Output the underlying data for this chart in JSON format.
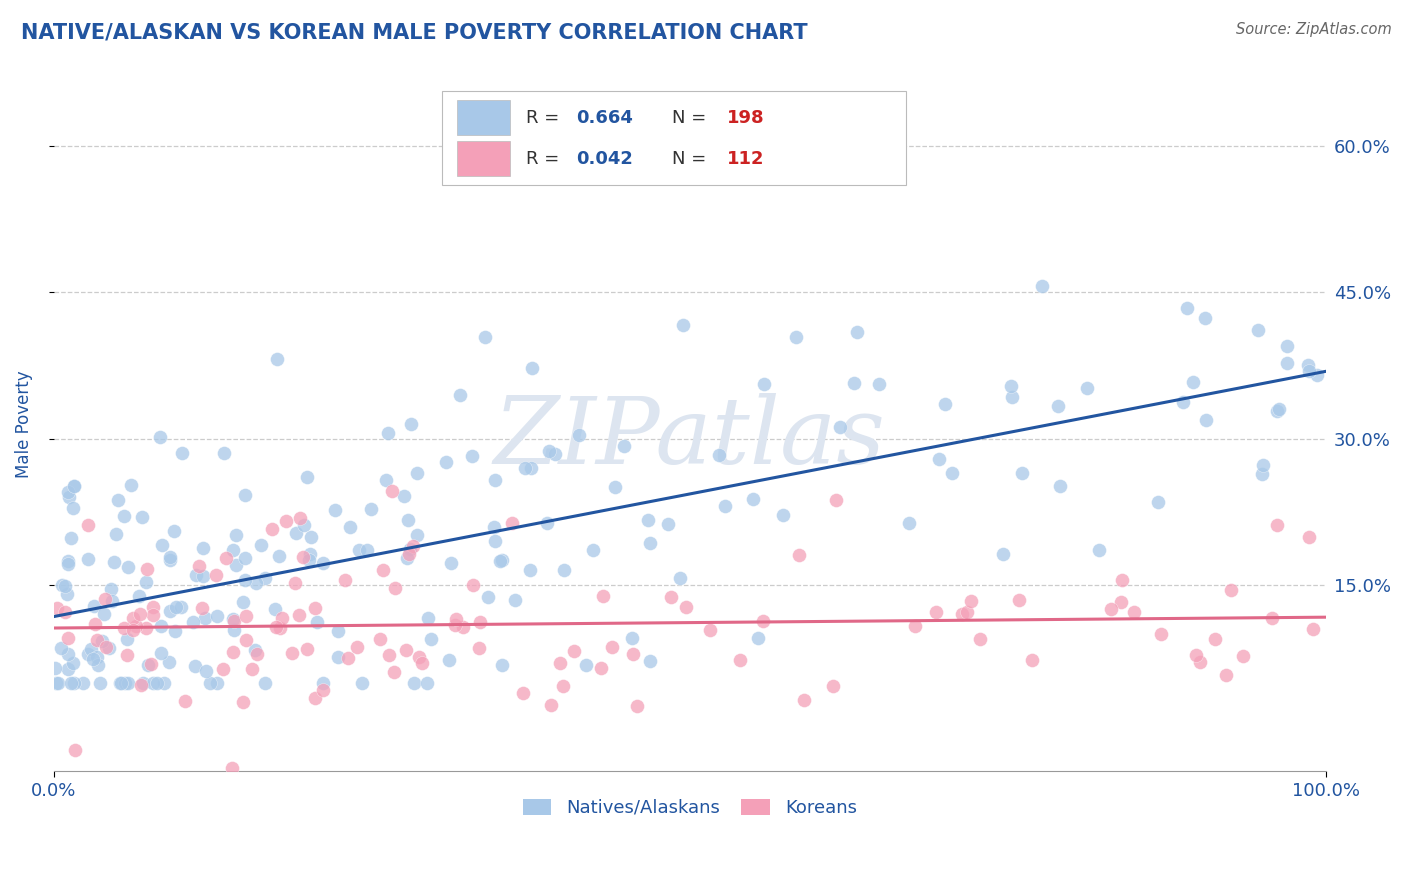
{
  "title": "NATIVE/ALASKAN VS KOREAN MALE POVERTY CORRELATION CHART",
  "source": "Source: ZipAtlas.com",
  "ylabel": "Male Poverty",
  "xlim": [
    0,
    1
  ],
  "ylim": [
    -0.04,
    0.67
  ],
  "yticks": [
    0.15,
    0.3,
    0.45,
    0.6
  ],
  "ytick_labels": [
    "15.0%",
    "30.0%",
    "45.0%",
    "60.0%"
  ],
  "blue_R": 0.664,
  "blue_N": 198,
  "pink_R": 0.042,
  "pink_N": 112,
  "blue_color": "#a8c8e8",
  "pink_color": "#f4a0b8",
  "blue_line_color": "#2255a0",
  "pink_line_color": "#e06888",
  "title_color": "#2255a0",
  "axis_label_color": "#2255a0",
  "tick_color": "#2255a0",
  "background_color": "#ffffff",
  "watermark": "ZIPatlas",
  "watermark_color": "#dde5f0",
  "legend_R_color": "#2255a0",
  "legend_N_color": "#cc2222",
  "grid_color": "#cccccc"
}
